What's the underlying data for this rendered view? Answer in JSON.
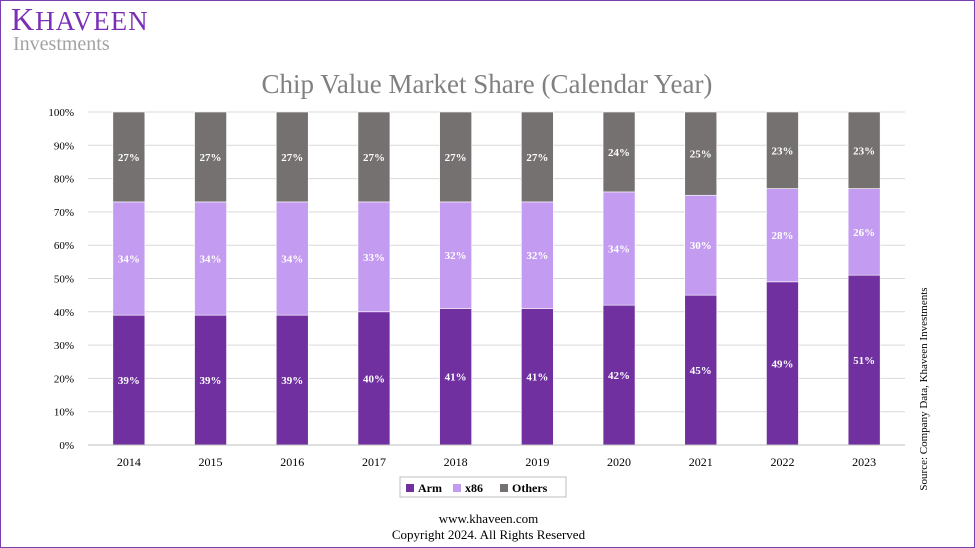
{
  "brand": {
    "name": "KHAVEEN",
    "subtitle": "Investments"
  },
  "chart_data": {
    "type": "bar",
    "stacked": true,
    "title": "Chip Value Market Share (Calendar Year)",
    "categories": [
      "2014",
      "2015",
      "2016",
      "2017",
      "2018",
      "2019",
      "2020",
      "2021",
      "2022",
      "2023"
    ],
    "series": [
      {
        "name": "Arm",
        "color": "#7030a0",
        "values": [
          39,
          39,
          39,
          40,
          41,
          41,
          42,
          45,
          49,
          51
        ]
      },
      {
        "name": "x86",
        "color": "#c39bf0",
        "values": [
          34,
          34,
          34,
          33,
          32,
          32,
          34,
          30,
          28,
          26
        ]
      },
      {
        "name": "Others",
        "color": "#767171",
        "values": [
          27,
          27,
          27,
          27,
          27,
          27,
          24,
          25,
          23,
          23
        ]
      }
    ],
    "ylim": [
      0,
      100
    ],
    "yticks": [
      "0%",
      "10%",
      "20%",
      "30%",
      "40%",
      "50%",
      "60%",
      "70%",
      "80%",
      "90%",
      "100%"
    ],
    "grid": true,
    "legend": "bottom",
    "source_note": "Source: Company Data, Khaveen Investments"
  },
  "footer": {
    "website": "www.khaveen.com",
    "copyright": "Copyright 2024. All Rights Reserved"
  }
}
